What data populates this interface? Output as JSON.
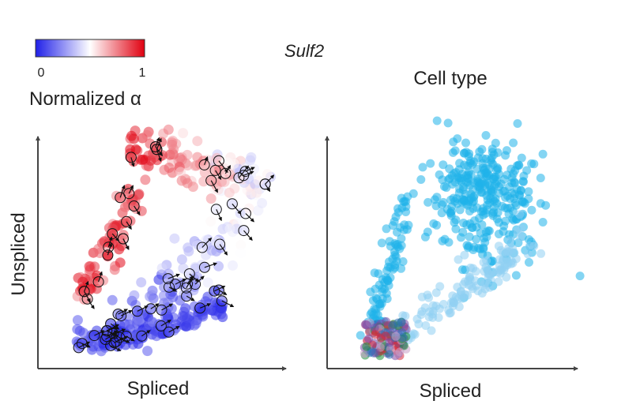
{
  "gene_title": "Sulf2",
  "colorbar": {
    "min_label": "0",
    "max_label": "1",
    "title": "Normalized α",
    "colors": [
      "#2020e8",
      "#ffffff",
      "#e00010"
    ]
  },
  "chart_data": [
    {
      "type": "scatter",
      "title": "",
      "xlabel": "Spliced",
      "ylabel": "Unspliced",
      "xlim": [
        0,
        1
      ],
      "ylim": [
        0,
        1
      ],
      "color_by": "Normalized alpha",
      "description_of_data": "Each point is a cell; color = normalized alpha (0 blue to 1 red); circled points carry velocity arrows",
      "points": [],
      "velocity_points": []
    },
    {
      "type": "scatter",
      "title": "Cell type",
      "xlabel": "Spliced",
      "ylabel": "",
      "xlim": [
        0,
        1
      ],
      "ylim": [
        0,
        1
      ],
      "color_by": "Cell type",
      "points": []
    }
  ]
}
